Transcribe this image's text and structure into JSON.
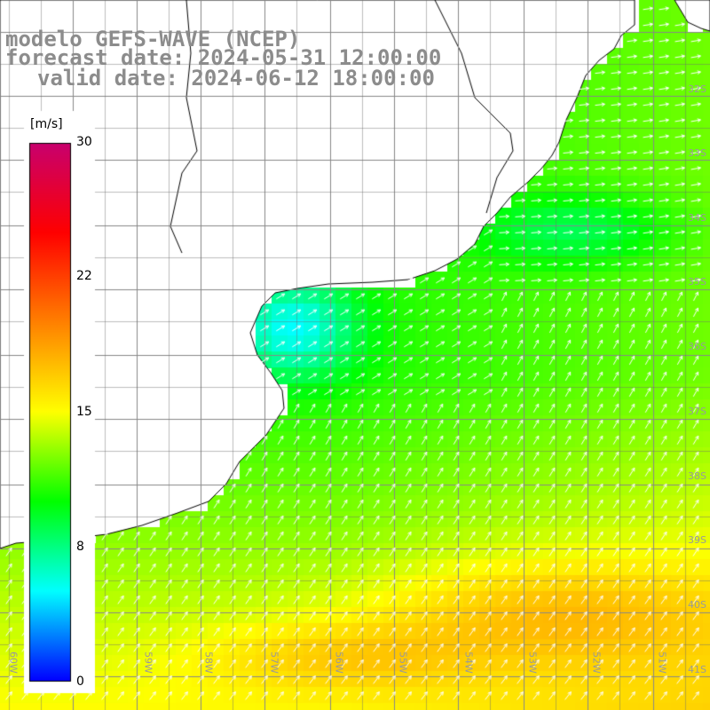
{
  "title": {
    "line1": "modelo GEFS-WAVE (NCEP)",
    "line2": "forecast date: 2024-05-31 12:00:00",
    "line3": "valid date: 2024-06-12 18:00:00"
  },
  "colorbar": {
    "unit": "[m/s]",
    "ticks": [
      "30",
      "22",
      "15",
      "8",
      "0"
    ],
    "min": 0,
    "max": 30,
    "colors": [
      "#0000ff",
      "#00ffff",
      "#00ff00",
      "#ffff00",
      "#ff8000",
      "#ff0000",
      "#c8006e"
    ]
  },
  "axes": {
    "lat_labels": [
      "32S",
      "33S",
      "34S",
      "35S",
      "36S",
      "37S",
      "38S",
      "39S",
      "40S",
      "41S"
    ],
    "lon_labels": [
      "60W",
      "59W",
      "58W",
      "57W",
      "56W",
      "55W",
      "54W",
      "53W",
      "52W",
      "51W"
    ]
  },
  "colors": {
    "land": "#ffffff",
    "coast": "#000000",
    "grid": "#888888",
    "arrows": "#ffffff"
  }
}
